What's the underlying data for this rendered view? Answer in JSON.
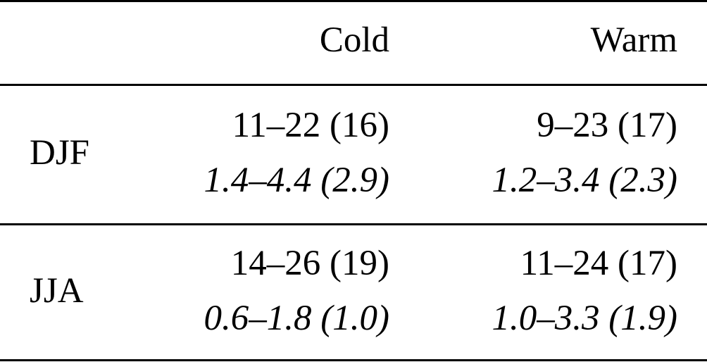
{
  "table": {
    "header": [
      "Cold",
      "Warm"
    ],
    "rows": [
      {
        "label": "DJF",
        "cells": [
          [
            "11–22 (16)",
            "1.4–4.4 (2.9)"
          ],
          [
            "9–23 (17)",
            "1.2–3.4 (2.3)"
          ]
        ]
      },
      {
        "label": "JJA",
        "cells": [
          [
            "14–26 (19)",
            "0.6–1.8 (1.0)"
          ],
          [
            "11–24 (17)",
            "1.0–3.3 (1.9)"
          ]
        ]
      }
    ]
  }
}
